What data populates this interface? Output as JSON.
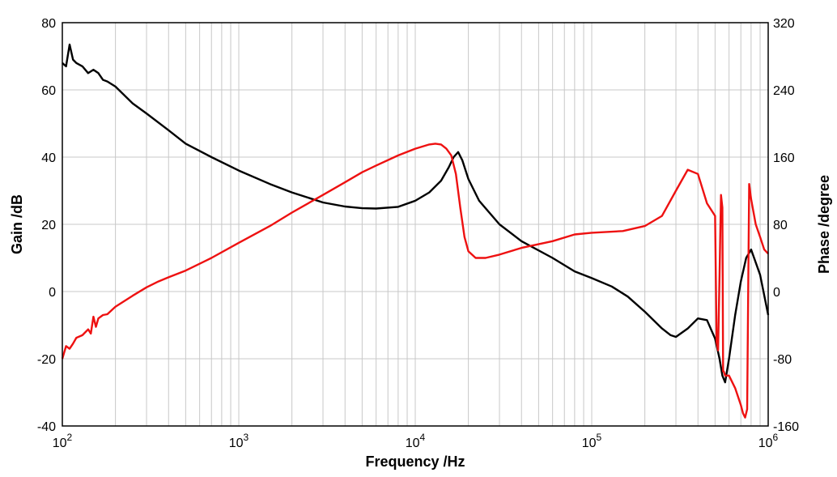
{
  "chart_data": {
    "type": "line",
    "title": "",
    "xlabel": "Frequency /Hz",
    "ylabel_left": "Gain /dB",
    "ylabel_right": "Phase /degree",
    "x_scale": "log",
    "xlim": [
      100,
      1000000
    ],
    "ylim_left": [
      -40,
      80
    ],
    "ylim_right": [
      -160,
      320
    ],
    "grid": true,
    "x_ticks": [
      {
        "value": 100,
        "base": "10",
        "exp": "2"
      },
      {
        "value": 1000,
        "base": "10",
        "exp": "3"
      },
      {
        "value": 10000,
        "base": "10",
        "exp": "4"
      },
      {
        "value": 100000,
        "base": "10",
        "exp": "5"
      },
      {
        "value": 1000000,
        "base": "10",
        "exp": "6"
      }
    ],
    "y_left_ticks": [
      "80",
      "60",
      "40",
      "20",
      "0",
      "-20",
      "-40"
    ],
    "y_left_tick_values": [
      80,
      60,
      40,
      20,
      0,
      -20,
      -40
    ],
    "y_right_ticks": [
      "320",
      "240",
      "160",
      "80",
      "0",
      "-80",
      "-160"
    ],
    "y_right_tick_values": [
      320,
      240,
      160,
      80,
      0,
      -80,
      -160
    ],
    "series": [
      {
        "name": "Gain",
        "axis": "left",
        "color": "#000000",
        "x": [
          100,
          105,
          110,
          115,
          120,
          130,
          140,
          150,
          160,
          170,
          180,
          200,
          250,
          300,
          400,
          500,
          700,
          1000,
          1500,
          2000,
          3000,
          4000,
          5000,
          6000,
          8000,
          10000,
          12000,
          14000,
          15500,
          16500,
          17500,
          18500,
          20000,
          23000,
          30000,
          40000,
          60000,
          80000,
          100000,
          130000,
          160000,
          200000,
          250000,
          280000,
          300000,
          350000,
          400000,
          450000,
          500000,
          530000,
          550000,
          570000,
          600000,
          650000,
          700000,
          750000,
          800000,
          900000,
          1000000
        ],
        "y": [
          68,
          67,
          73.5,
          69,
          68,
          67,
          65,
          66,
          65,
          63,
          62.5,
          61,
          56,
          53,
          48,
          44,
          40,
          36,
          32,
          29.5,
          26.5,
          25.3,
          24.8,
          24.7,
          25.2,
          27,
          29.5,
          33,
          37,
          40,
          41.5,
          39,
          33.5,
          27,
          20,
          15,
          10,
          6,
          4,
          1.5,
          -1.5,
          -6,
          -11,
          -13,
          -13.5,
          -11,
          -8,
          -8.5,
          -14,
          -20,
          -25,
          -27,
          -20,
          -7,
          3,
          10,
          12.5,
          5,
          -7
        ]
      },
      {
        "name": "Phase",
        "axis": "right",
        "color": "#ee1111",
        "x": [
          100,
          105,
          110,
          115,
          120,
          130,
          140,
          145,
          150,
          155,
          160,
          170,
          180,
          200,
          250,
          300,
          350,
          400,
          500,
          700,
          1000,
          1500,
          2000,
          3000,
          4000,
          5000,
          6000,
          8000,
          10000,
          12000,
          13000,
          14000,
          15000,
          16000,
          17000,
          18000,
          19000,
          20000,
          22000,
          25000,
          30000,
          40000,
          60000,
          80000,
          100000,
          150000,
          200000,
          250000,
          300000,
          350000,
          400000,
          450000,
          500000,
          510000,
          520000,
          530000,
          540000,
          550000,
          555000,
          560000,
          570000,
          600000,
          650000,
          700000,
          720000,
          740000,
          760000,
          780000,
          800000,
          850000,
          900000,
          950000,
          1000000
        ],
        "y": [
          -80,
          -65,
          -68,
          -62,
          -55,
          -52,
          -45,
          -50,
          -30,
          -42,
          -32,
          -28,
          -27,
          -18,
          -5,
          5,
          12,
          17,
          25,
          40,
          58,
          78,
          94,
          115,
          130,
          142,
          150,
          162,
          170,
          175,
          176,
          175,
          170,
          162,
          140,
          100,
          65,
          48,
          40,
          40,
          44,
          52,
          60,
          68,
          70,
          72,
          78,
          90,
          120,
          145,
          140,
          105,
          90,
          -60,
          -70,
          20,
          115,
          100,
          -95,
          -95,
          -100,
          -100,
          -115,
          -135,
          -145,
          -150,
          -140,
          128,
          110,
          80,
          65,
          50,
          45
        ]
      }
    ]
  }
}
